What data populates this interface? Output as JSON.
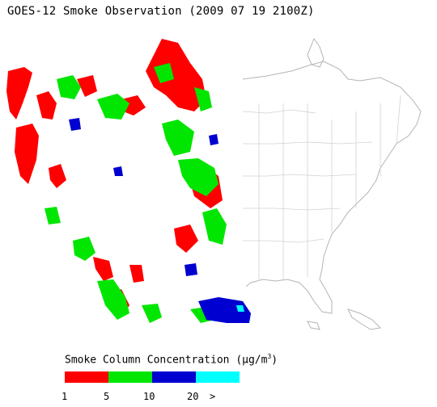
{
  "title": "GOES-12 Smoke Observation (2009 07 19  2100Z)",
  "legend": {
    "title_prefix": "Smoke Column Concentration (",
    "unit_mu": "μ",
    "unit_rest": "g/m",
    "unit_exp": "3",
    "title_suffix": ")",
    "classes": [
      {
        "range": "1-5",
        "color": "#ff0000"
      },
      {
        "range": "5-10",
        "color": "#00e600"
      },
      {
        "range": "10-20",
        "color": "#0000d0"
      },
      {
        "range": "20+",
        "color": "#00ffff"
      }
    ],
    "ticks": [
      "1",
      "5",
      "10",
      "20",
      ">"
    ]
  },
  "map": {
    "ocean_color": "#ffffff",
    "land_outline_color": "#bbbbbb",
    "data_region_color": "#ffffff"
  }
}
